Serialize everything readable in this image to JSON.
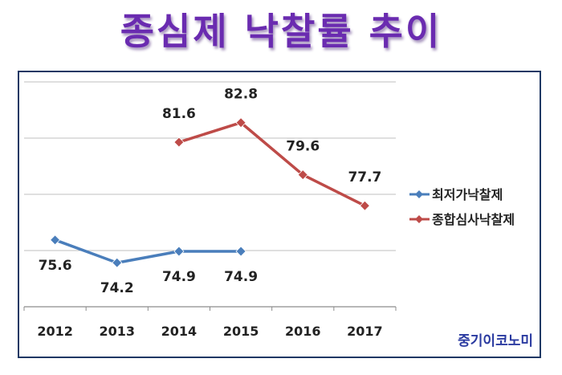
{
  "page_title": "종심제 낙찰률 추이",
  "watermark": "중기이코노미",
  "colors": {
    "title": "#6a2bb0",
    "frame": "#1f3864",
    "grid": "#bfbfbf"
  },
  "chart_data": {
    "type": "line",
    "title": "",
    "xlabel": "",
    "ylabel": "",
    "categories": [
      "2012",
      "2013",
      "2014",
      "2015",
      "2016",
      "2017"
    ],
    "ylim": [
      71.5,
      85.3
    ],
    "grid": true,
    "legend_position": "right",
    "series": [
      {
        "name": "최저가낙찰제",
        "color": "#4a7ebb",
        "values": [
          75.6,
          74.2,
          74.9,
          74.9,
          null,
          null
        ]
      },
      {
        "name": "종합심사낙찰제",
        "color": "#be4b48",
        "values": [
          null,
          null,
          81.6,
          82.8,
          79.6,
          77.7
        ]
      }
    ],
    "data_labels": [
      [
        "75.6",
        "74.2",
        "74.9",
        "74.9",
        null,
        null
      ],
      [
        null,
        null,
        "81.6",
        "82.8",
        "79.6",
        "77.7"
      ]
    ]
  }
}
